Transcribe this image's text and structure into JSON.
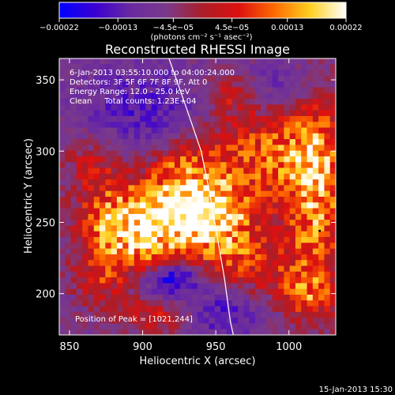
{
  "chart_data": {
    "type": "heatmap",
    "title": "Reconstructed RHESSI Image",
    "xlabel": "Heliocentric X (arcsec)",
    "ylabel": "Heliocentric Y (arcsec)",
    "xlim": [
      843,
      1032
    ],
    "ylim": [
      171,
      365
    ],
    "x_ticks": [
      "850",
      "900",
      "950",
      "1000"
    ],
    "x_tick_values": [
      850,
      900,
      950,
      1000
    ],
    "y_ticks": [
      "200",
      "250",
      "300",
      "350"
    ],
    "y_tick_values": [
      200,
      250,
      300,
      350
    ],
    "grid": false,
    "colorbar": {
      "ticks": [
        "−0.00022",
        "−0.00013",
        "−4.5e−05",
        "4.5e−05",
        "0.00013",
        "0.00022"
      ],
      "tick_values": [
        -0.00022,
        -0.00013,
        -4.5e-05,
        4.5e-05,
        0.00013,
        0.00022
      ],
      "range": [
        -0.00022,
        0.00022
      ],
      "unit_label": "(photons cm⁻² s⁻¹ asec⁻²)",
      "colormap_stops": [
        "#0000ff",
        "#3a00d0",
        "#6a2aa0",
        "#7a3a8a",
        "#ab1e28",
        "#dd1010",
        "#ff6a00",
        "#ffd020",
        "#ffffff"
      ]
    },
    "annotations": {
      "time_range": "6-Jan-2013 03:55:10.000 to 04:00:24.000",
      "detectors": "Detectors: 3F 5F 6F 7F 8F 9F, Att 0",
      "energy": "Energy Range: 12.0 - 25.0 keV",
      "clean": "Clean     Total counts: 1.23E+04",
      "peak": "Position of Peak = [1021,244]"
    },
    "peak_position": [
      1021,
      244
    ],
    "limb_curve": [
      [
        918,
        365
      ],
      [
        930,
        330
      ],
      [
        940,
        300
      ],
      [
        946,
        270
      ],
      [
        951,
        240
      ],
      [
        956,
        210
      ],
      [
        960,
        180
      ],
      [
        962,
        171
      ]
    ],
    "intensity_blobs": [
      {
        "x": 947,
        "y": 255,
        "sx": 22,
        "sy": 20,
        "a": 1.0
      },
      {
        "x": 915,
        "y": 260,
        "sx": 22,
        "sy": 14,
        "a": 0.75
      },
      {
        "x": 880,
        "y": 248,
        "sx": 18,
        "sy": 20,
        "a": 0.7
      },
      {
        "x": 905,
        "y": 232,
        "sx": 20,
        "sy": 14,
        "a": 0.55
      },
      {
        "x": 1018,
        "y": 268,
        "sx": 14,
        "sy": 50,
        "a": 0.8
      },
      {
        "x": 985,
        "y": 300,
        "sx": 30,
        "sy": 22,
        "a": 0.6
      },
      {
        "x": 975,
        "y": 222,
        "sx": 22,
        "sy": 14,
        "a": 0.45
      },
      {
        "x": 925,
        "y": 290,
        "sx": 16,
        "sy": 12,
        "a": 0.45
      },
      {
        "x": 865,
        "y": 290,
        "sx": 14,
        "sy": 14,
        "a": 0.35
      },
      {
        "x": 1010,
        "y": 200,
        "sx": 14,
        "sy": 10,
        "a": 0.45
      },
      {
        "x": 905,
        "y": 185,
        "sx": 18,
        "sy": 10,
        "a": 0.4
      },
      {
        "x": 960,
        "y": 340,
        "sx": 12,
        "sy": 10,
        "a": 0.35
      },
      {
        "x": 870,
        "y": 210,
        "sx": 12,
        "sy": 12,
        "a": 0.4
      },
      {
        "x": 920,
        "y": 210,
        "sx": 14,
        "sy": 10,
        "a": -0.65
      },
      {
        "x": 900,
        "y": 330,
        "sx": 30,
        "sy": 22,
        "a": -0.3
      },
      {
        "x": 1000,
        "y": 345,
        "sx": 22,
        "sy": 14,
        "a": -0.25
      },
      {
        "x": 955,
        "y": 185,
        "sx": 16,
        "sy": 12,
        "a": -0.35
      }
    ]
  },
  "footer": {
    "timestamp": "15-Jan-2013 15:30"
  }
}
